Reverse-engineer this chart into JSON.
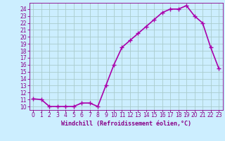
{
  "x": [
    0,
    1,
    2,
    3,
    4,
    5,
    6,
    7,
    8,
    9,
    10,
    11,
    12,
    13,
    14,
    15,
    16,
    17,
    18,
    19,
    20,
    21,
    22,
    23
  ],
  "y": [
    11.1,
    11.0,
    10.0,
    10.0,
    10.0,
    10.0,
    10.5,
    10.5,
    10.0,
    13.0,
    16.0,
    18.5,
    19.5,
    20.5,
    21.5,
    22.5,
    23.5,
    24.0,
    24.0,
    24.5,
    23.0,
    22.0,
    18.5,
    15.5
  ],
  "line_color": "#aa00aa",
  "marker": "+",
  "marker_size": 4,
  "marker_edge_width": 1.0,
  "xlim": [
    -0.5,
    23.5
  ],
  "ylim": [
    9.5,
    24.9
  ],
  "yticks": [
    10,
    11,
    12,
    13,
    14,
    15,
    16,
    17,
    18,
    19,
    20,
    21,
    22,
    23,
    24
  ],
  "xticks": [
    0,
    1,
    2,
    3,
    4,
    5,
    6,
    7,
    8,
    9,
    10,
    11,
    12,
    13,
    14,
    15,
    16,
    17,
    18,
    19,
    20,
    21,
    22,
    23
  ],
  "xlabel": "Windchill (Refroidissement éolien,°C)",
  "background_color": "#cceeff",
  "grid_color": "#aacccc",
  "axis_label_color": "#880088",
  "tick_label_color": "#880088",
  "line_width": 1.2,
  "tick_label_size": 5.5,
  "xlabel_size": 6.0
}
